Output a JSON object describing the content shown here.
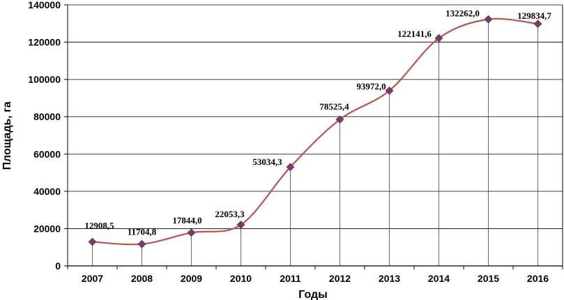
{
  "chart_data": {
    "type": "line",
    "xlabel": "Годы",
    "ylabel": "Площадь, га",
    "ylim": [
      0,
      140000
    ],
    "yticks": [
      0,
      20000,
      40000,
      60000,
      80000,
      100000,
      120000,
      140000
    ],
    "grid": "horizontal",
    "smooth": true,
    "line_color": "#c0504d",
    "marker_color": "#7b3b6e",
    "categories": [
      "2007",
      "2008",
      "2009",
      "2010",
      "2011",
      "2012",
      "2013",
      "2014",
      "2015",
      "2016"
    ],
    "series": [
      {
        "values": [
          12908.5,
          11704.8,
          17844.0,
          22053.3,
          53034.3,
          78525.4,
          93972.0,
          122141.6,
          132262.0,
          129834.7
        ],
        "labels": [
          "12908,5",
          "11704,8",
          "17844,0",
          "22053,3",
          "53034,3",
          "78525,4",
          "93972,0",
          "122141,6",
          "132262,0",
          "129834,7"
        ]
      }
    ]
  }
}
